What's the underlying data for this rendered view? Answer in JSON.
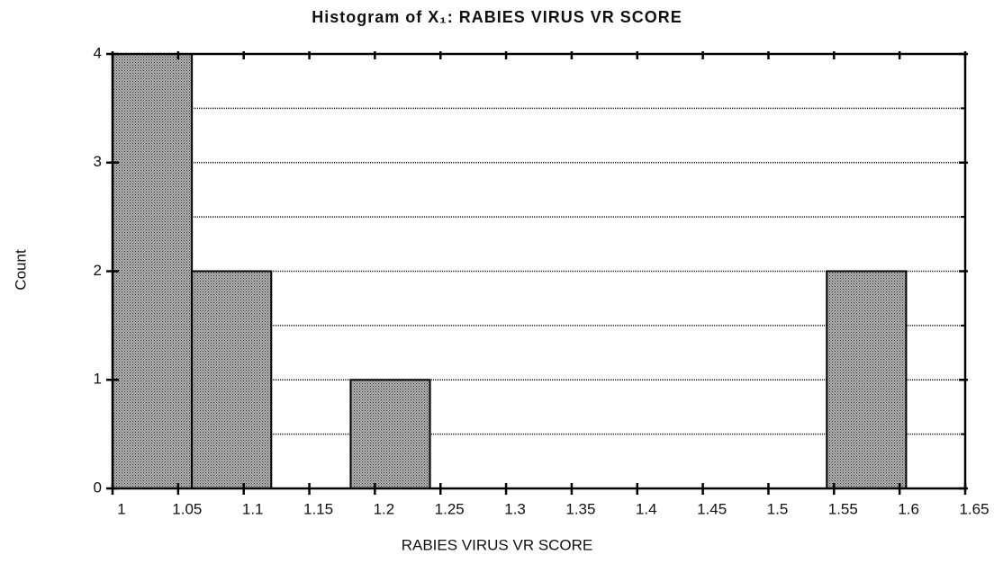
{
  "chart_data": {
    "type": "histogram",
    "title": "Histogram of X₁: RABIES VIRUS VR SCORE",
    "xlabel": "RABIES VIRUS VR SCORE",
    "ylabel": "Count",
    "bins": [
      1,
      1.0605,
      1.121,
      1.1815,
      1.242,
      1.3025,
      1.363,
      1.4235,
      1.484,
      1.5445,
      1.605
    ],
    "counts": [
      4,
      2,
      0,
      1,
      0,
      0,
      0,
      0,
      0,
      2
    ],
    "color": "#8c8c8c",
    "xlim": [
      1,
      1.65
    ],
    "xticks": [
      1,
      1.05,
      1.1,
      1.15,
      1.2,
      1.25,
      1.3,
      1.35,
      1.4,
      1.45,
      1.5,
      1.55,
      1.6,
      1.65
    ],
    "ylim": [
      0,
      4
    ],
    "yticks": [
      0,
      1,
      2,
      3,
      4
    ],
    "ygrid": [
      0.5,
      1,
      1.5,
      2,
      2.5,
      3,
      3.5,
      4
    ]
  }
}
